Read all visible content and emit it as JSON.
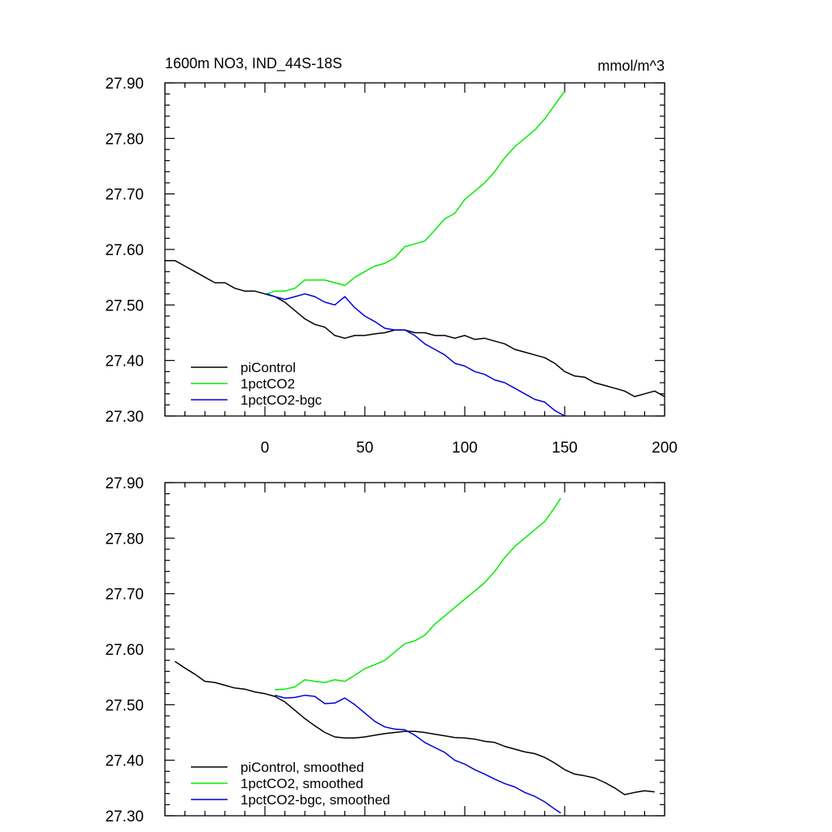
{
  "chart_data": [
    {
      "type": "line",
      "title": "1600m NO3, IND_44S-18S",
      "units": "mmol/m^3",
      "xlim": [
        -50,
        200
      ],
      "ylim": [
        27.3,
        27.9
      ],
      "x_ticks": [
        "0",
        "50",
        "100",
        "150",
        "200"
      ],
      "y_ticks": [
        "27.30",
        "27.40",
        "27.50",
        "27.60",
        "27.70",
        "27.80",
        "27.90"
      ],
      "legend_position": "bottom-left",
      "series": [
        {
          "name": "piControl",
          "color": "#000000",
          "x": [
            -50,
            -45,
            -40,
            -35,
            -30,
            -25,
            -20,
            -15,
            -10,
            -5,
            0,
            5,
            10,
            15,
            20,
            25,
            30,
            35,
            40,
            45,
            50,
            55,
            60,
            65,
            70,
            75,
            80,
            85,
            90,
            95,
            100,
            105,
            110,
            115,
            120,
            125,
            130,
            135,
            140,
            145,
            150,
            155,
            160,
            165,
            170,
            175,
            180,
            185,
            190,
            195,
            200
          ],
          "y": [
            27.58,
            27.58,
            27.57,
            27.56,
            27.55,
            27.54,
            27.54,
            27.53,
            27.525,
            27.525,
            27.52,
            27.515,
            27.505,
            27.49,
            27.475,
            27.465,
            27.46,
            27.445,
            27.44,
            27.445,
            27.445,
            27.448,
            27.45,
            27.455,
            27.455,
            27.45,
            27.45,
            27.445,
            27.445,
            27.44,
            27.445,
            27.438,
            27.44,
            27.435,
            27.43,
            27.42,
            27.415,
            27.41,
            27.405,
            27.395,
            27.38,
            27.372,
            27.37,
            27.36,
            27.355,
            27.35,
            27.345,
            27.335,
            27.34,
            27.345,
            27.335
          ]
        },
        {
          "name": "1pctCO2",
          "color": "#00ee00",
          "x": [
            1,
            5,
            10,
            15,
            20,
            25,
            30,
            35,
            40,
            45,
            50,
            55,
            60,
            65,
            70,
            75,
            80,
            85,
            90,
            95,
            100,
            105,
            110,
            115,
            120,
            125,
            130,
            135,
            140,
            145,
            150
          ],
          "y": [
            27.52,
            27.525,
            27.525,
            27.53,
            27.545,
            27.545,
            27.545,
            27.54,
            27.535,
            27.55,
            27.56,
            27.57,
            27.575,
            27.585,
            27.605,
            27.61,
            27.615,
            27.635,
            27.655,
            27.665,
            27.69,
            27.705,
            27.72,
            27.74,
            27.765,
            27.785,
            27.8,
            27.815,
            27.835,
            27.86,
            27.885
          ]
        },
        {
          "name": "1pctCO2-bgc",
          "color": "#0000dd",
          "x": [
            1,
            5,
            10,
            15,
            20,
            25,
            30,
            35,
            40,
            45,
            50,
            55,
            60,
            65,
            70,
            75,
            80,
            85,
            90,
            95,
            100,
            105,
            110,
            115,
            120,
            125,
            130,
            135,
            140,
            145,
            150
          ],
          "y": [
            27.52,
            27.515,
            27.51,
            27.515,
            27.52,
            27.515,
            27.505,
            27.5,
            27.515,
            27.495,
            27.48,
            27.47,
            27.458,
            27.455,
            27.455,
            27.445,
            27.43,
            27.42,
            27.41,
            27.395,
            27.39,
            27.38,
            27.375,
            27.365,
            27.36,
            27.35,
            27.34,
            27.33,
            27.325,
            27.31,
            27.3
          ]
        }
      ]
    },
    {
      "type": "line",
      "xlim": [
        -50,
        200
      ],
      "ylim": [
        27.3,
        27.9
      ],
      "y_ticks": [
        "27.30",
        "27.40",
        "27.50",
        "27.60",
        "27.70",
        "27.80",
        "27.90"
      ],
      "legend_position": "bottom-left",
      "series": [
        {
          "name": "piControl, smoothed",
          "color": "#000000",
          "x": [
            -45,
            -40,
            -35,
            -30,
            -25,
            -20,
            -15,
            -10,
            -5,
            0,
            5,
            10,
            15,
            20,
            25,
            30,
            35,
            40,
            45,
            50,
            55,
            60,
            65,
            70,
            75,
            80,
            85,
            90,
            95,
            100,
            105,
            110,
            115,
            120,
            125,
            130,
            135,
            140,
            145,
            150,
            155,
            160,
            165,
            170,
            175,
            180,
            185,
            190,
            195
          ],
          "y": [
            27.578,
            27.566,
            27.555,
            27.542,
            27.54,
            27.535,
            27.53,
            27.528,
            27.523,
            27.52,
            27.515,
            27.505,
            27.49,
            27.475,
            27.462,
            27.45,
            27.442,
            27.44,
            27.44,
            27.442,
            27.445,
            27.448,
            27.45,
            27.452,
            27.452,
            27.45,
            27.447,
            27.444,
            27.441,
            27.44,
            27.438,
            27.434,
            27.432,
            27.425,
            27.42,
            27.415,
            27.412,
            27.405,
            27.395,
            27.383,
            27.375,
            27.372,
            27.368,
            27.36,
            27.35,
            27.338,
            27.342,
            27.345,
            27.343
          ]
        },
        {
          "name": "1pctCO2, smoothed",
          "color": "#00ee00",
          "x": [
            5,
            10,
            15,
            20,
            25,
            30,
            35,
            40,
            45,
            50,
            55,
            60,
            65,
            70,
            75,
            80,
            85,
            90,
            95,
            100,
            105,
            110,
            115,
            120,
            125,
            130,
            135,
            140,
            145,
            148
          ],
          "y": [
            27.527,
            27.528,
            27.532,
            27.545,
            27.542,
            27.54,
            27.545,
            27.542,
            27.553,
            27.565,
            27.572,
            27.58,
            27.595,
            27.61,
            27.615,
            27.625,
            27.645,
            27.66,
            27.675,
            27.69,
            27.705,
            27.72,
            27.74,
            27.765,
            27.785,
            27.8,
            27.815,
            27.83,
            27.855,
            27.872
          ]
        },
        {
          "name": "1pctCO2-bgc, smoothed",
          "color": "#0000dd",
          "x": [
            5,
            10,
            15,
            20,
            25,
            30,
            35,
            40,
            45,
            50,
            55,
            60,
            65,
            70,
            75,
            80,
            85,
            90,
            95,
            100,
            105,
            110,
            115,
            120,
            125,
            130,
            135,
            140,
            145,
            148
          ],
          "y": [
            27.517,
            27.512,
            27.513,
            27.517,
            27.515,
            27.502,
            27.503,
            27.512,
            27.5,
            27.485,
            27.47,
            27.46,
            27.456,
            27.455,
            27.445,
            27.432,
            27.423,
            27.414,
            27.4,
            27.393,
            27.383,
            27.375,
            27.366,
            27.358,
            27.352,
            27.342,
            27.335,
            27.325,
            27.312,
            27.305
          ]
        }
      ]
    }
  ]
}
